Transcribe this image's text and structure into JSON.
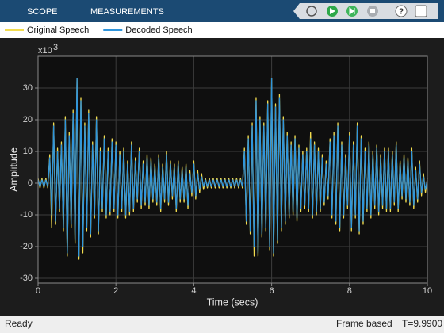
{
  "toolbar": {
    "tabs": [
      "SCOPE",
      "MEASUREMENTS"
    ]
  },
  "status_bar": {
    "state": "Ready",
    "mode": "Frame based",
    "time": "T=9.9900"
  },
  "chart_data": {
    "type": "line",
    "x_label": "Time (secs)",
    "y_label": "Amplitude",
    "y_exponent": {
      "base": "x10",
      "power": "3"
    },
    "xlim": [
      0,
      10
    ],
    "ylim": [
      -31.5,
      40
    ],
    "xticks": [
      0,
      2,
      4,
      6,
      8,
      10
    ],
    "yticks": [
      -30,
      -20,
      -10,
      0,
      10,
      20,
      30
    ],
    "grid": true,
    "legend": "top-left",
    "x": [
      0,
      0.05,
      0.1,
      0.15,
      0.2,
      0.25,
      0.3,
      0.35,
      0.4,
      0.45,
      0.5,
      0.55,
      0.6,
      0.65,
      0.7,
      0.75,
      0.8,
      0.85,
      0.9,
      0.95,
      1,
      1.05,
      1.1,
      1.15,
      1.2,
      1.25,
      1.3,
      1.35,
      1.4,
      1.45,
      1.5,
      1.55,
      1.6,
      1.65,
      1.7,
      1.75,
      1.8,
      1.85,
      1.9,
      1.95,
      2,
      2.05,
      2.1,
      2.15,
      2.2,
      2.25,
      2.3,
      2.35,
      2.4,
      2.45,
      2.5,
      2.55,
      2.6,
      2.65,
      2.7,
      2.75,
      2.8,
      2.85,
      2.9,
      2.95,
      3,
      3.05,
      3.1,
      3.15,
      3.2,
      3.25,
      3.3,
      3.35,
      3.4,
      3.45,
      3.5,
      3.55,
      3.6,
      3.65,
      3.7,
      3.75,
      3.8,
      3.85,
      3.9,
      3.95,
      4,
      4.05,
      4.1,
      4.15,
      4.2,
      4.25,
      4.3,
      4.35,
      4.4,
      4.45,
      4.5,
      4.55,
      4.6,
      4.65,
      4.7,
      4.75,
      4.8,
      4.85,
      4.9,
      4.95,
      5,
      5.05,
      5.1,
      5.15,
      5.2,
      5.25,
      5.3,
      5.35,
      5.4,
      5.45,
      5.5,
      5.55,
      5.6,
      5.65,
      5.7,
      5.75,
      5.8,
      5.85,
      5.9,
      5.95,
      6,
      6.05,
      6.1,
      6.15,
      6.2,
      6.25,
      6.3,
      6.35,
      6.4,
      6.45,
      6.5,
      6.55,
      6.6,
      6.65,
      6.7,
      6.75,
      6.8,
      6.85,
      6.9,
      6.95,
      7,
      7.05,
      7.1,
      7.15,
      7.2,
      7.25,
      7.3,
      7.35,
      7.4,
      7.45,
      7.5,
      7.55,
      7.6,
      7.65,
      7.7,
      7.75,
      7.8,
      7.85,
      7.9,
      7.95,
      8,
      8.05,
      8.1,
      8.15,
      8.2,
      8.25,
      8.3,
      8.35,
      8.4,
      8.45,
      8.5,
      8.55,
      8.6,
      8.65,
      8.7,
      8.75,
      8.8,
      8.85,
      8.9,
      8.95,
      9,
      9.05,
      9.1,
      9.15,
      9.2,
      9.25,
      9.3,
      9.35,
      9.4,
      9.45,
      9.5,
      9.55,
      9.6,
      9.65,
      9.7,
      9.75,
      9.8,
      9.85,
      9.9,
      9.95,
      10
    ],
    "series": [
      {
        "name": "Original Speech",
        "color": "#f2dc4f",
        "values": [
          1.5,
          -1.5,
          1.5,
          -1.5,
          1.5,
          -1.5,
          9,
          -14,
          19,
          -13,
          11,
          -9,
          13,
          -15,
          21,
          -23,
          16,
          -14,
          23,
          -19,
          33,
          -24,
          27,
          -22,
          19,
          -15,
          23,
          -17,
          13,
          -11,
          21,
          -16,
          11,
          -9,
          15,
          -11,
          11,
          -10,
          14,
          -9,
          13,
          -11,
          10,
          -9,
          11,
          -11,
          7,
          -10,
          13,
          -9,
          8,
          -6,
          11,
          -8,
          7,
          -7,
          9,
          -8,
          8,
          -6,
          6,
          -7,
          9,
          -9,
          6,
          -6,
          10,
          -7,
          7,
          -5,
          6,
          -9,
          7,
          -6,
          5,
          -6,
          6,
          -8,
          4,
          -4,
          7,
          -5,
          4,
          -3,
          3,
          -2,
          1.5,
          -1.5,
          1.5,
          -1.5,
          1.5,
          -1.5,
          1.5,
          -1.5,
          1.5,
          -1.5,
          1.5,
          -1.5,
          1.5,
          -1.5,
          1.5,
          -1.5,
          1.5,
          -1.5,
          1.5,
          -1.5,
          11,
          -13,
          15,
          -16,
          19,
          -23,
          27,
          -23,
          21,
          -17,
          19,
          -15,
          26,
          -21,
          33,
          -23,
          25,
          -19,
          28,
          -15,
          21,
          -13,
          16,
          -11,
          13,
          -10,
          15,
          -12,
          12,
          -9,
          10,
          -8,
          11,
          -9,
          16,
          -11,
          13,
          -10,
          11,
          -9,
          9,
          -7,
          7,
          -5,
          14,
          -11,
          16,
          -13,
          19,
          -15,
          13,
          -11,
          9,
          -8,
          16,
          -15,
          13,
          -11,
          19,
          -16,
          15,
          -13,
          11,
          -9,
          13,
          -11,
          10,
          -8,
          12,
          -10,
          9,
          -8,
          11,
          -9,
          11,
          -9,
          10,
          -7,
          13,
          -9,
          7,
          -5,
          9,
          -6,
          8,
          -7,
          11,
          -8,
          5,
          -6,
          7,
          -4,
          3,
          -3,
          1.5
        ]
      },
      {
        "name": "Decoded Speech",
        "color": "#2f95dc",
        "values": [
          1,
          -1,
          1,
          -1,
          1,
          -1,
          8,
          -10,
          18,
          -12,
          10,
          -8,
          12,
          -14,
          20,
          -22,
          15,
          -13,
          22,
          -18,
          33,
          -23,
          26,
          -20,
          18,
          -14,
          22,
          -16,
          12,
          -10,
          20,
          -15,
          10,
          -8,
          14,
          -10,
          10,
          -9,
          13,
          -8,
          12,
          -10,
          9,
          -8,
          10,
          -10,
          6,
          -9,
          12,
          -8,
          7,
          -5,
          10,
          -7,
          6,
          -6,
          8,
          -7,
          7,
          -5,
          5,
          -6,
          8,
          -8,
          5,
          -5,
          9,
          -6,
          6,
          -4,
          5,
          -8,
          6,
          -5,
          4,
          -5,
          5,
          -7,
          3,
          -3,
          6,
          -4,
          3,
          -2,
          2,
          -1,
          1,
          -1,
          1,
          -1,
          1,
          -1,
          1,
          -1,
          1,
          -1,
          1,
          -1,
          1,
          -1,
          1,
          -1,
          1,
          -1,
          1,
          -1,
          10,
          -12,
          14,
          -15,
          18,
          -20,
          26,
          -22,
          20,
          -16,
          18,
          -14,
          25,
          -20,
          33,
          -22,
          24,
          -18,
          27,
          -14,
          20,
          -12,
          15,
          -10,
          12,
          -9,
          14,
          -11,
          11,
          -8,
          9,
          -7,
          10,
          -8,
          14,
          -10,
          12,
          -9,
          10,
          -8,
          8,
          -6,
          6,
          -4,
          13,
          -10,
          15,
          -12,
          18,
          -14,
          12,
          -10,
          8,
          -7,
          15,
          -14,
          12,
          -10,
          18,
          -15,
          14,
          -12,
          10,
          -8,
          12,
          -10,
          9,
          -7,
          11,
          -9,
          8,
          -7,
          10,
          -8,
          10,
          -8,
          9,
          -6,
          12,
          -8,
          6,
          -4,
          8,
          -5,
          7,
          -6,
          10,
          -7,
          4,
          -5,
          6,
          -3,
          2,
          -2,
          1
        ]
      }
    ]
  }
}
